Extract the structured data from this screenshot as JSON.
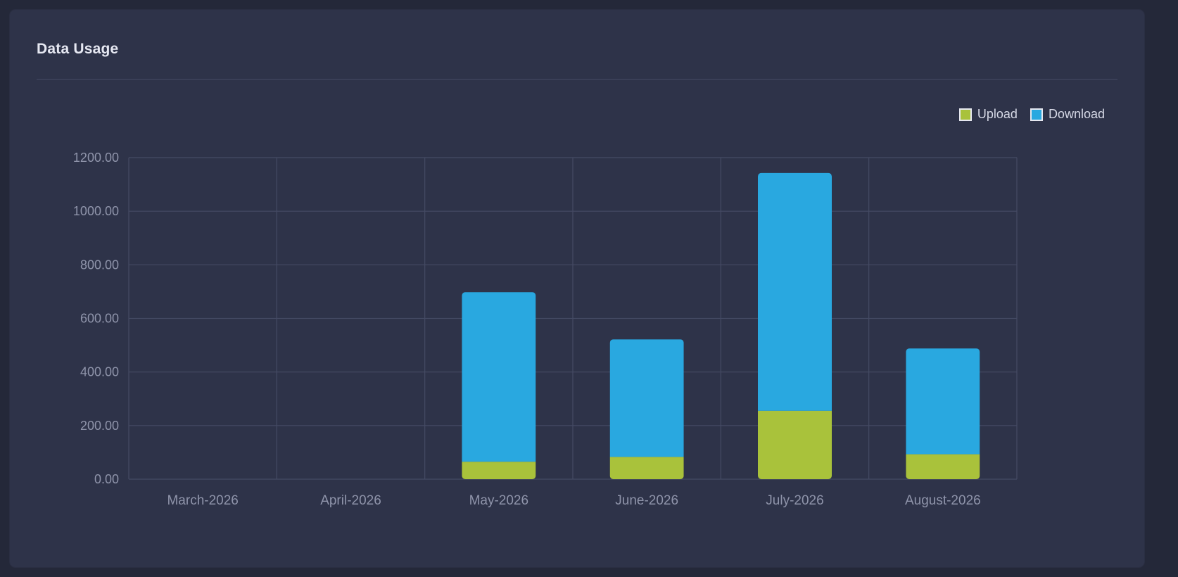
{
  "card": {
    "title": "Data Usage"
  },
  "colors": {
    "upload": "#a9c23b",
    "download": "#29a8e0",
    "grid": "#454b64",
    "tick_label": "#8f94aa",
    "background": "#2e3349"
  },
  "chart_data": {
    "type": "bar",
    "stacked": true,
    "title": "Data Usage",
    "xlabel": "",
    "ylabel": "",
    "categories": [
      "March-2026",
      "April-2026",
      "May-2026",
      "June-2026",
      "July-2026",
      "August-2026"
    ],
    "series": [
      {
        "name": "Upload",
        "values": [
          0,
          0,
          65,
          83,
          255,
          93
        ]
      },
      {
        "name": "Download",
        "values": [
          0,
          0,
          633,
          439,
          888,
          395
        ]
      }
    ],
    "ylim": [
      0,
      1200
    ],
    "yticks": [
      "0.00",
      "200.00",
      "400.00",
      "600.00",
      "800.00",
      "1000.00",
      "1200.00"
    ],
    "grid": true,
    "legend_position": "top-right"
  }
}
